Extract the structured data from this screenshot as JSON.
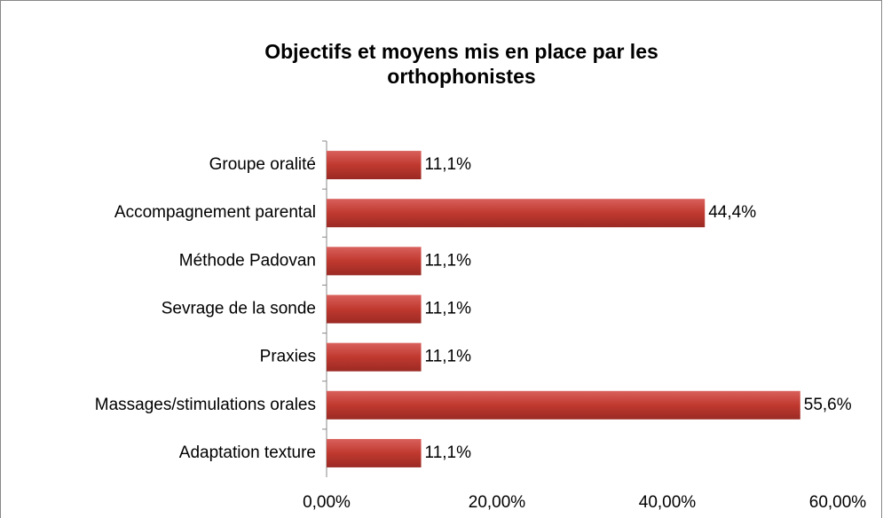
{
  "chart_data": {
    "type": "hbar",
    "title": "Objectifs et moyens mis en place par les orthophonistes",
    "categories": [
      "Groupe oralité",
      "Accompagnement parental",
      "Méthode Padovan",
      "Sevrage de la sonde",
      "Praxies",
      "Massages/stimulations orales",
      "Adaptation texture"
    ],
    "values": [
      11.1,
      44.4,
      11.1,
      11.1,
      11.1,
      55.6,
      11.1
    ],
    "value_labels": [
      "11,1%",
      "44,4%",
      "11,1%",
      "11,1%",
      "11,1%",
      "55,6%",
      "11,1%"
    ],
    "color": "#c0392f",
    "xlim": [
      0,
      60
    ],
    "xticks": [
      {
        "value": 0,
        "label": "0,00%"
      },
      {
        "value": 20,
        "label": "20,00%"
      },
      {
        "value": 40,
        "label": "40,00%"
      },
      {
        "value": 60,
        "label": "60,00%"
      }
    ]
  }
}
